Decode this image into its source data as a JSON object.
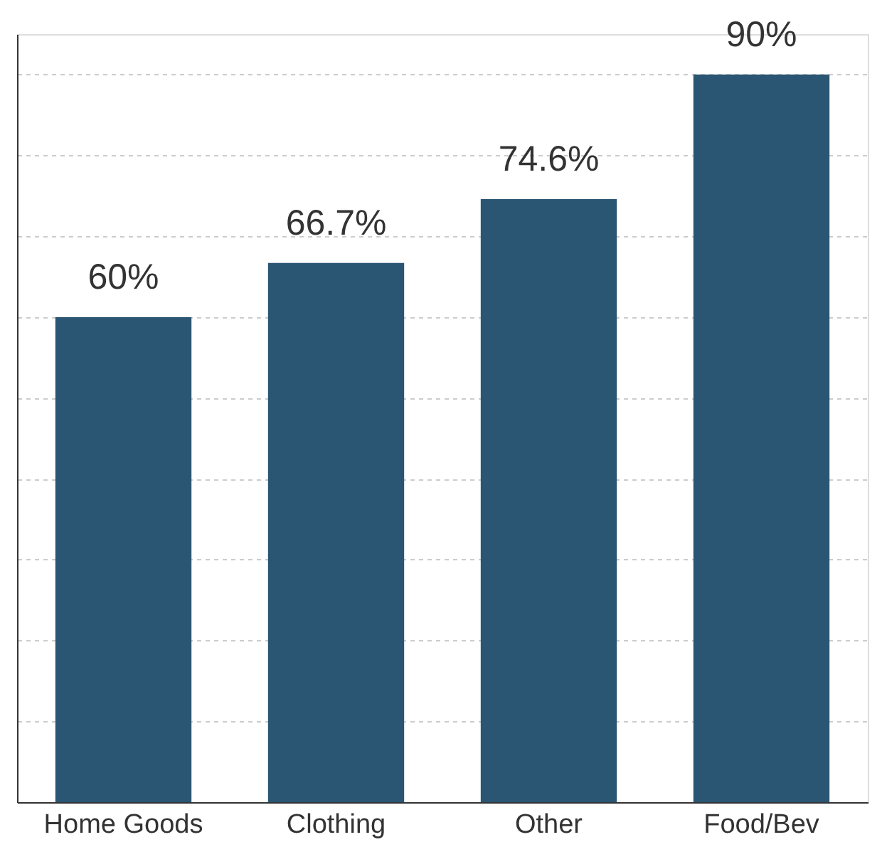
{
  "chart_data": {
    "type": "bar",
    "categories": [
      "Home Goods",
      "Clothing",
      "Other",
      "Food/Bev"
    ],
    "values": [
      60,
      66.7,
      74.6,
      90
    ],
    "value_labels": [
      "60%",
      "66.7%",
      "74.6%",
      "90%"
    ],
    "color": "#2a5673",
    "ylim": [
      0,
      95
    ],
    "yticks": [
      {
        "value": 0,
        "label": null
      },
      {
        "value": 10,
        "label": null
      },
      {
        "value": 20,
        "label": null
      },
      {
        "value": 30,
        "label": null
      },
      {
        "value": 40,
        "label": null
      },
      {
        "value": 50,
        "label": null
      },
      {
        "value": 60,
        "label": null
      },
      {
        "value": 70,
        "label": null
      },
      {
        "value": 80,
        "label": null
      },
      {
        "value": 90,
        "label": null
      }
    ],
    "grid": "y",
    "tick_labels": "x"
  }
}
